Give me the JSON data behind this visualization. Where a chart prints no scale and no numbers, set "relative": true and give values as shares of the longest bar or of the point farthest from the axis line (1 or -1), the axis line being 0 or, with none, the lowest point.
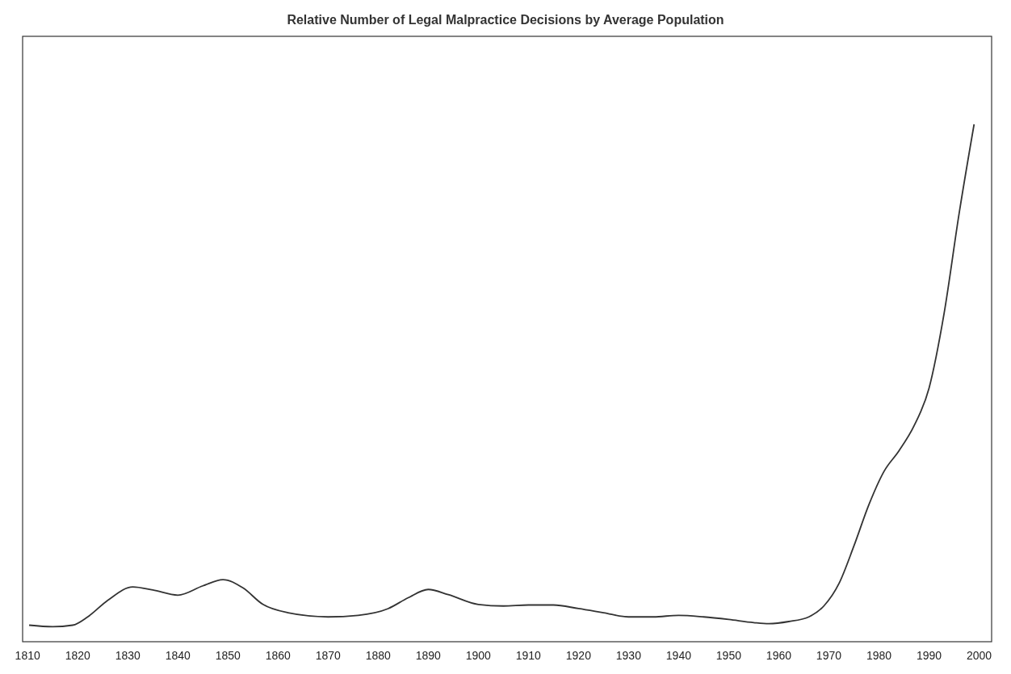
{
  "chart_data": {
    "type": "line",
    "title": "Relative Number of Legal Malpractice Decisions by Average Population",
    "relative": true,
    "line_style": "solid",
    "xlim": [
      1809,
      2002.5
    ],
    "xticks": [
      1810,
      1820,
      1830,
      1840,
      1850,
      1860,
      1870,
      1880,
      1890,
      1900,
      1910,
      1920,
      1930,
      1940,
      1950,
      1960,
      1970,
      1980,
      1990,
      2000
    ],
    "series": [
      {
        "color": "#333333",
        "x": [
          1810.3,
          1815,
          1819,
          1822,
          1826,
          1831,
          1835,
          1840,
          1845,
          1849,
          1853,
          1857,
          1862,
          1870,
          1876,
          1882,
          1886,
          1890,
          1894,
          1900,
          1905,
          1910,
          1915,
          1920,
          1925,
          1930,
          1935,
          1940,
          1945,
          1950,
          1955,
          1958,
          1962,
          1966,
          1969,
          1972,
          1975,
          1978,
          1981,
          1984,
          1987,
          1990,
          1993,
          1996,
          1999
        ],
        "values": [
          0.032,
          0.029,
          0.032,
          0.048,
          0.08,
          0.106,
          0.1,
          0.09,
          0.108,
          0.12,
          0.104,
          0.072,
          0.056,
          0.048,
          0.051,
          0.064,
          0.085,
          0.101,
          0.091,
          0.072,
          0.069,
          0.071,
          0.071,
          0.064,
          0.056,
          0.048,
          0.048,
          0.051,
          0.048,
          0.043,
          0.037,
          0.035,
          0.039,
          0.048,
          0.069,
          0.112,
          0.185,
          0.265,
          0.329,
          0.369,
          0.417,
          0.49,
          0.634,
          0.827,
          1
        ]
      }
    ]
  }
}
